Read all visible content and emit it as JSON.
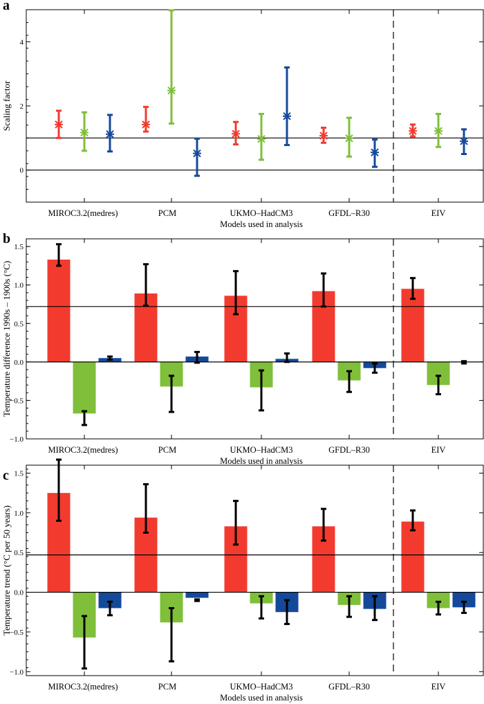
{
  "colors": {
    "red": "#f23b2e",
    "green": "#7fbf3a",
    "blue": "#14499a",
    "black": "#000000"
  },
  "shared": {
    "categories": [
      "MIROC3.2(medres)",
      "PCM",
      "UKMO–HadCM3",
      "GFDL–R30",
      "EIV"
    ],
    "xlabel": "Models used in analysis"
  },
  "chart_data": [
    {
      "panel": "a",
      "type": "errorbar",
      "ylabel": "Scaling factor",
      "ylim": [
        -1,
        5
      ],
      "yticks": [
        0,
        2,
        4
      ],
      "ytick_labels": [
        "0",
        "2",
        "4"
      ],
      "hlines": [
        0,
        1
      ],
      "series": [
        {
          "name": "red",
          "values": [
            1.42,
            1.42,
            1.13,
            1.07,
            1.22
          ],
          "lower": [
            1.0,
            1.2,
            0.8,
            0.85,
            1.05
          ],
          "upper": [
            1.85,
            1.97,
            1.5,
            1.32,
            1.42
          ]
        },
        {
          "name": "green",
          "values": [
            1.17,
            2.48,
            0.97,
            0.99,
            1.22
          ],
          "lower": [
            0.6,
            1.45,
            0.32,
            0.42,
            0.72
          ],
          "upper": [
            1.8,
            4.98,
            1.75,
            1.63,
            1.75
          ]
        },
        {
          "name": "blue",
          "values": [
            1.12,
            0.52,
            1.68,
            0.55,
            0.9
          ],
          "lower": [
            0.58,
            -0.18,
            0.78,
            0.1,
            0.5
          ],
          "upper": [
            1.72,
            0.98,
            3.2,
            0.95,
            1.27
          ]
        }
      ]
    },
    {
      "panel": "b",
      "type": "bar",
      "ylabel": "Temperature difference 1990s – 1900s (°C)",
      "ylim": [
        -1.0,
        1.6
      ],
      "yticks": [
        -1.0,
        -0.5,
        0.0,
        0.5,
        1.0,
        1.5
      ],
      "ytick_labels": [
        "−1.0",
        "−0.5",
        "0.0",
        "0.5",
        "1.0",
        "1.5"
      ],
      "hlines": [
        0,
        0.72
      ],
      "series": [
        {
          "name": "red",
          "values": [
            1.33,
            0.89,
            0.86,
            0.92,
            0.95
          ],
          "lower": [
            1.25,
            0.73,
            0.62,
            0.72,
            0.82
          ],
          "upper": [
            1.53,
            1.27,
            1.18,
            1.15,
            1.09
          ]
        },
        {
          "name": "green",
          "values": [
            -0.67,
            -0.32,
            -0.33,
            -0.24,
            -0.3
          ],
          "lower": [
            -0.82,
            -0.65,
            -0.63,
            -0.39,
            -0.42
          ],
          "upper": [
            -0.64,
            -0.18,
            -0.11,
            -0.12,
            -0.18
          ]
        },
        {
          "name": "blue",
          "values": [
            0.05,
            0.07,
            0.04,
            -0.08,
            -0.005
          ],
          "lower": [
            0.03,
            -0.01,
            0.0,
            -0.14,
            -0.02
          ],
          "upper": [
            0.07,
            0.13,
            0.11,
            -0.02,
            0.01
          ]
        }
      ]
    },
    {
      "panel": "c",
      "type": "bar",
      "ylabel": "Temperature trend (°C per 50 years)",
      "ylim": [
        -1.05,
        1.6
      ],
      "yticks": [
        -1.0,
        -0.5,
        0.0,
        0.5,
        1.0,
        1.5
      ],
      "ytick_labels": [
        "−1.0",
        "−0.5",
        "0.0",
        "0.5",
        "1.0",
        "1.5"
      ],
      "hlines": [
        0,
        0.47
      ],
      "series": [
        {
          "name": "red",
          "values": [
            1.25,
            0.94,
            0.83,
            0.83,
            0.89
          ],
          "lower": [
            0.9,
            0.75,
            0.6,
            0.65,
            0.78
          ],
          "upper": [
            1.67,
            1.36,
            1.15,
            1.05,
            1.03
          ]
        },
        {
          "name": "green",
          "values": [
            -0.57,
            -0.38,
            -0.14,
            -0.16,
            -0.2
          ],
          "lower": [
            -0.96,
            -0.87,
            -0.33,
            -0.31,
            -0.28
          ],
          "upper": [
            -0.3,
            -0.2,
            -0.05,
            -0.05,
            -0.12
          ]
        },
        {
          "name": "blue",
          "values": [
            -0.2,
            -0.07,
            -0.25,
            -0.21,
            -0.19
          ],
          "lower": [
            -0.29,
            -0.11,
            -0.4,
            -0.35,
            -0.26
          ],
          "upper": [
            -0.12,
            -0.09,
            -0.1,
            -0.05,
            -0.12
          ]
        }
      ]
    }
  ]
}
